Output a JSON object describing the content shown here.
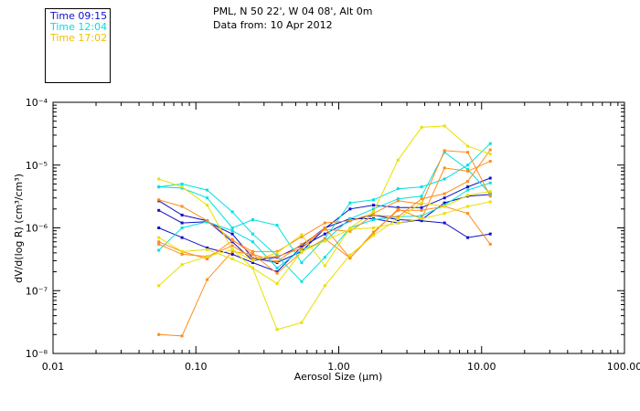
{
  "header": {
    "line1": "PML, N 50 22', W 04 08', Alt 0m",
    "line2": "Data from: 10 Apr 2012"
  },
  "legend": [
    {
      "label": "Time 09:15",
      "color": "#1010c8"
    },
    {
      "label": "Time 12:04",
      "color": "#00e0e0"
    },
    {
      "label": "Time 17:02",
      "color": "#f0c000"
    }
  ],
  "chart_data": {
    "type": "line",
    "title": "",
    "xlabel": "Aerosol Size (µm)",
    "ylabel": "dV/d(log R) (cm³/cm³)",
    "xscale": "log",
    "yscale": "log",
    "xlim": [
      0.01,
      100
    ],
    "ylim": [
      1e-08,
      0.0001
    ],
    "xticks": [
      "0.01",
      "0.10",
      "1.00",
      "10.00",
      "100.00"
    ],
    "yticks": [
      "10⁻⁸",
      "10⁻⁷",
      "10⁻⁶",
      "10⁻⁵",
      "10⁻⁴"
    ],
    "grid": false,
    "legend_position": "top-left",
    "x": [
      0.055,
      0.08,
      0.12,
      0.18,
      0.25,
      0.37,
      0.55,
      0.8,
      1.2,
      1.75,
      2.6,
      3.8,
      5.5,
      8.0,
      11.5
    ],
    "series": [
      {
        "color": "#1010c8",
        "marker": "square",
        "values": [
          1.9e-06,
          1.2e-06,
          1.25e-06,
          8e-07,
          3.3e-07,
          2.8e-07,
          4.2e-07,
          9.8e-07,
          2e-06,
          2.3e-06,
          2.1e-06,
          2.1e-06,
          3e-06,
          4.5e-06,
          6.2e-06
        ]
      },
      {
        "color": "#1010c8",
        "marker": "square",
        "values": [
          2.7e-06,
          1.6e-06,
          1.3e-06,
          6e-07,
          3e-07,
          3.4e-07,
          5.2e-07,
          1e-06,
          1.4e-06,
          1.4e-06,
          1.2e-06,
          1.35e-06,
          2.5e-06,
          3.2e-06,
          3.4e-06
        ]
      },
      {
        "color": "#1010c8",
        "marker": "square",
        "values": [
          1e-06,
          7e-07,
          4.8e-07,
          3.8e-07,
          2.8e-07,
          2e-07,
          5e-07,
          8e-07,
          1.3e-06,
          1.6e-06,
          1.35e-06,
          1.3e-06,
          1.2e-06,
          7e-07,
          8e-07
        ]
      },
      {
        "color": "#00e0e0",
        "marker": "square",
        "values": [
          4.5e-06,
          5e-06,
          4e-06,
          1.8e-06,
          8e-07,
          3.6e-07,
          1.4e-07,
          3.4e-07,
          1e-06,
          1.35e-06,
          1.5e-06,
          1.55e-06,
          2.3e-06,
          4e-06,
          5.2e-06
        ]
      },
      {
        "color": "#00e0e0",
        "marker": "square",
        "values": [
          4.5e-06,
          4.3e-06,
          3e-06,
          1e-06,
          1.35e-06,
          1.1e-06,
          2.8e-07,
          6.8e-07,
          2.5e-06,
          2.8e-06,
          4.2e-06,
          4.5e-06,
          6e-06,
          1e-05,
          2.2e-05
        ]
      },
      {
        "color": "#00e0e0",
        "marker": "square",
        "values": [
          4.4e-07,
          1e-06,
          1.25e-06,
          9e-07,
          6e-07,
          2.3e-07,
          4.5e-07,
          6.2e-07,
          1.4e-06,
          2e-06,
          2.9e-06,
          3.2e-06,
          1.6e-05,
          8.5e-06,
          3.5e-06
        ]
      },
      {
        "color": "#ff8c1a",
        "marker": "square",
        "values": [
          6e-07,
          4.2e-07,
          3.2e-07,
          6.3e-07,
          4.2e-07,
          4.2e-07,
          7.2e-07,
          1.2e-06,
          1.3e-06,
          1.7e-06,
          2.7e-06,
          2.4e-06,
          1.7e-05,
          1.6e-05,
          3.2e-06
        ]
      },
      {
        "color": "#ff8c1a",
        "marker": "square",
        "values": [
          2e-08,
          1.9e-08,
          1.5e-07,
          4.2e-07,
          3.8e-07,
          1.9e-07,
          4.1e-07,
          6.7e-07,
          3.3e-07,
          8.2e-07,
          2e-06,
          1.4e-06,
          9e-06,
          8e-06,
          1.15e-05
        ]
      },
      {
        "color": "#ff8c1a",
        "marker": "square",
        "values": [
          5.5e-07,
          3.8e-07,
          3.5e-07,
          5.2e-07,
          3.3e-07,
          3.5e-07,
          4.7e-07,
          1e-06,
          3.3e-07,
          8.6e-07,
          1.9e-06,
          1.9e-06,
          2.2e-06,
          1.7e-06,
          5.5e-07
        ]
      },
      {
        "color": "#ff8c1a",
        "marker": "square",
        "values": [
          2.8e-06,
          2.2e-06,
          1.3e-06,
          6.5e-07,
          3.8e-07,
          2.9e-07,
          5.5e-07,
          9.5e-07,
          8.8e-07,
          1.6e-06,
          1.5e-06,
          2.9e-06,
          3.5e-06,
          5.5e-06,
          1.75e-05
        ]
      },
      {
        "color": "#e8e000",
        "marker": "square",
        "values": [
          6e-06,
          4.5e-06,
          2.3e-06,
          4.5e-07,
          3e-07,
          4e-07,
          7.8e-07,
          2.5e-07,
          1e-06,
          1.8e-06,
          1.2e-05,
          4e-05,
          4.2e-05,
          2e-05,
          1.5e-05
        ]
      },
      {
        "color": "#e8e000",
        "marker": "square",
        "values": [
          1.2e-07,
          2.6e-07,
          3.5e-07,
          4.5e-07,
          2.3e-07,
          2.4e-08,
          3.1e-08,
          1.2e-07,
          3.7e-07,
          7.6e-07,
          1.4e-06,
          2.5e-06,
          2.2e-06,
          3.3e-06,
          3.8e-06
        ]
      },
      {
        "color": "#e8e000",
        "marker": "square",
        "values": [
          7e-07,
          4.2e-07,
          4.5e-07,
          3.2e-07,
          2.3e-07,
          1.3e-07,
          4.2e-07,
          6.2e-07,
          9.5e-07,
          1e-06,
          1.2e-06,
          1.4e-06,
          1.7e-06,
          2.2e-06,
          2.6e-06
        ]
      }
    ]
  }
}
